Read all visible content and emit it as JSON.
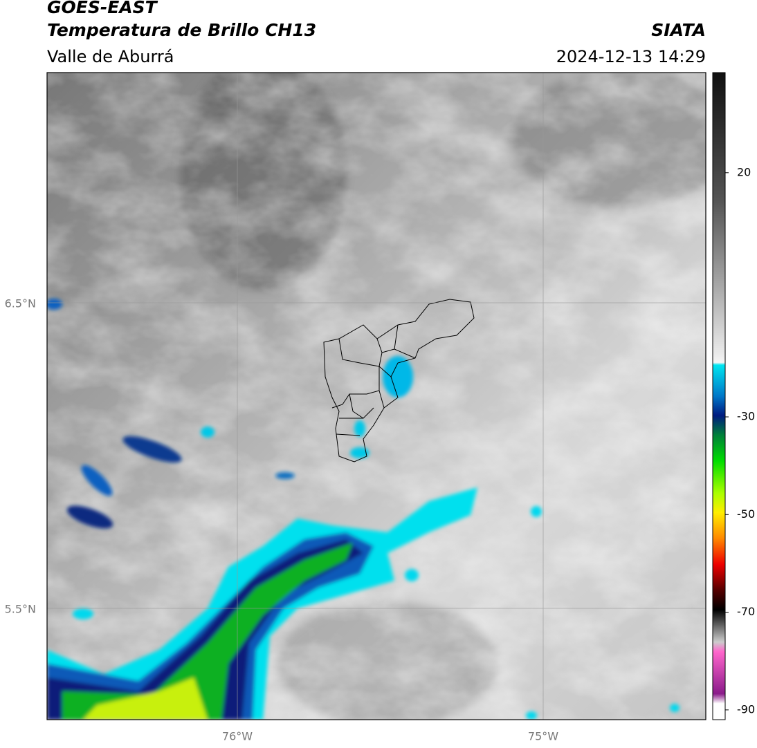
{
  "header": {
    "title": "GOES-EAST",
    "subtitle": "Temperatura de Brillo CH13",
    "region": "Valle de Aburrá",
    "source": "SIATA",
    "datetime": "2024-12-13 14:29"
  },
  "map": {
    "lat_labels": [
      "6.5°N",
      "5.5°N"
    ],
    "lon_labels": [
      "76°W",
      "75°W"
    ]
  },
  "colorbar": {
    "lim": [
      -92,
      40.5
    ],
    "ticks": [
      20,
      -30,
      -50,
      -70,
      -90
    ]
  }
}
